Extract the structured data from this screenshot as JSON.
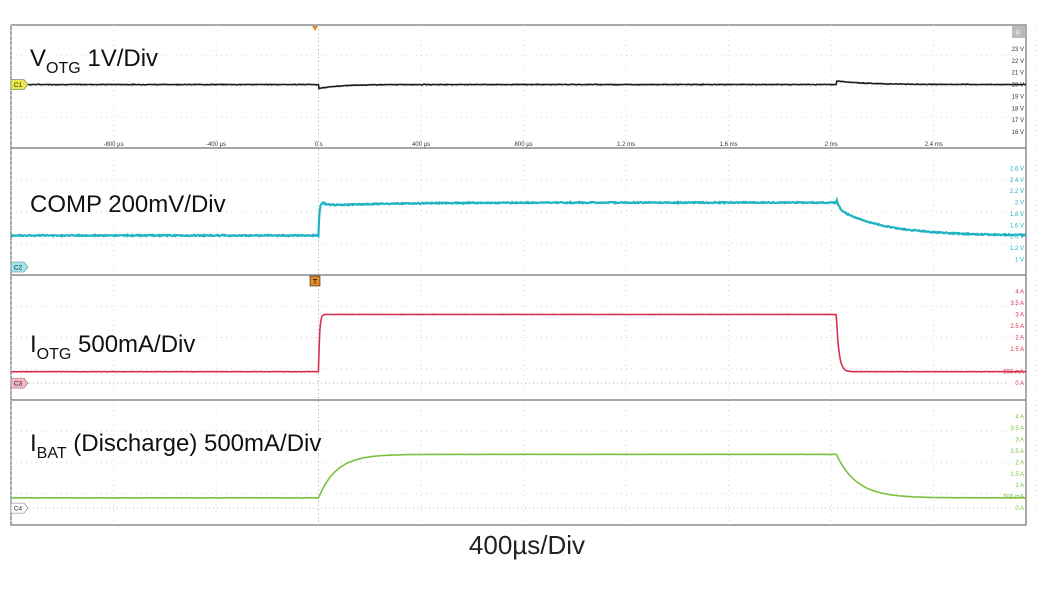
{
  "chart_data": {
    "type": "line",
    "time_axis": {
      "unit": "ms",
      "xlim": [
        -1.2,
        2.76
      ],
      "tick_values": [
        -0.8,
        -0.4,
        0,
        0.4,
        0.8,
        1.2,
        1.6,
        2.0,
        2.4
      ],
      "tick_labels": [
        "-800 µs",
        "-400 µs",
        "0 s",
        "400 µs",
        "800 µs",
        "1.2 ms",
        "1.6 ms",
        "2 ms",
        "2.4 ms"
      ],
      "division": "400µs/Div"
    },
    "top_right_badge": "R",
    "grid": true,
    "channels": [
      {
        "id": "C1",
        "badge": "C1",
        "label_main": "V",
        "label_sub": "OTG",
        "label_rest": " 1V/Div",
        "color": "#1a1a1a",
        "badge_color": "#e8e84a",
        "scale_labels": [
          "23 V",
          "22 V",
          "21 V",
          "20 V",
          "19 V",
          "18 V",
          "17 V",
          "16 V"
        ],
        "scale_values": [
          23,
          22,
          21,
          20,
          19,
          18,
          17,
          16
        ],
        "ylim": [
          15.5,
          24
        ],
        "baseline": 20,
        "events": [
          {
            "t": 0,
            "kind": "dip",
            "depth": 0.35
          },
          {
            "t": 2.02,
            "kind": "overshoot",
            "height": 0.3
          }
        ],
        "noise": 0.03
      },
      {
        "id": "C2",
        "badge": "C2",
        "label_main": "COMP 200mV/Div",
        "label_sub": "",
        "label_rest": "",
        "color": "#1fb3c2",
        "badge_color": "#9ee6ee",
        "scale_labels": [
          "2.6 V",
          "2.4 V",
          "2.2 V",
          "2 V",
          "1.8 V",
          "1.6 V",
          "1.4 V",
          "1.2 V",
          "1 V"
        ],
        "scale_values": [
          2.6,
          2.4,
          2.2,
          2.0,
          1.8,
          1.6,
          1.4,
          1.2,
          1.0
        ],
        "ylim": [
          0.9,
          2.75
        ],
        "low": 1.42,
        "high": 2.0,
        "step_on": 0,
        "step_off": 2.02,
        "noise": 0.02
      },
      {
        "id": "C3",
        "badge": "C3",
        "label_main": "I",
        "label_sub": "OTG",
        "label_rest": " 500mA/Div",
        "color": "#d9304f",
        "badge_color": "#f4b6c2",
        "scale_labels": [
          "4 A",
          "3.5 A",
          "3 A",
          "2.5 A",
          "2 A",
          "1.5 A",
          "500 mA",
          "0 A"
        ],
        "scale_values": [
          4,
          3.5,
          3,
          2.5,
          2,
          1.5,
          0.5,
          0
        ],
        "ylim": [
          -0.3,
          4.2
        ],
        "low": 0.5,
        "high": 3.0,
        "step_on": 0,
        "step_off": 2.02,
        "noise": 0.01
      },
      {
        "id": "C4",
        "badge": "C4",
        "label_main": "I",
        "label_sub": "BAT",
        "label_rest": " (Discharge) 500mA/Div",
        "color": "#7ac142",
        "badge_color": "#ffffff",
        "scale_labels": [
          "4 A",
          "3.5 A",
          "3 A",
          "2.5 A",
          "2 A",
          "1.5 A",
          "1 A",
          "500 mA",
          "0 A"
        ],
        "scale_values": [
          4,
          3.5,
          3,
          2.5,
          2,
          1.5,
          1,
          0.5,
          0
        ],
        "ylim": [
          -0.3,
          4.2
        ],
        "low": 0.45,
        "high": 2.35,
        "step_on": 0,
        "step_off": 2.02,
        "rise_tau": 0.07,
        "fall_tau": 0.08,
        "noise": 0.008
      }
    ]
  }
}
